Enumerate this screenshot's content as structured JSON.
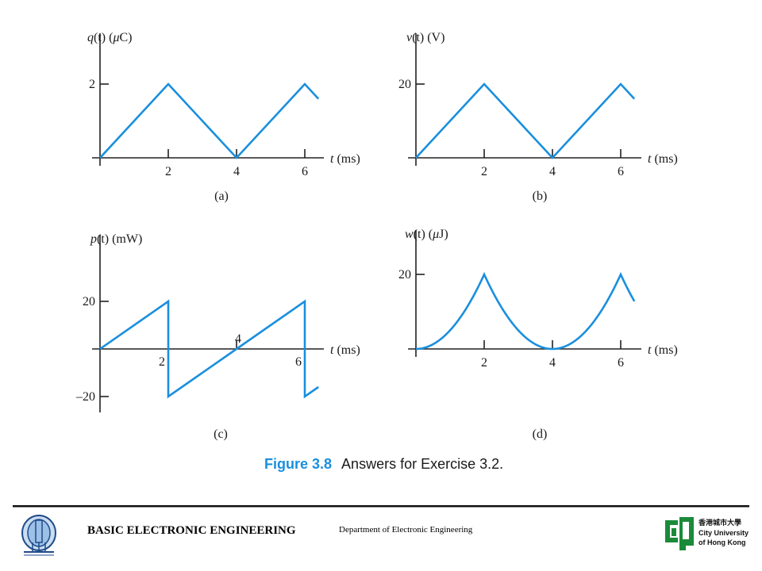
{
  "chart_data": [
    {
      "id": "a",
      "type": "line",
      "label": "(a)",
      "ylabel_main": "q",
      "ylabel_rest": "(t) (",
      "ylabel_unit_prefix": "μ",
      "ylabel_unit": "C)",
      "xlabel_var": "t",
      "xlabel_unit": "(ms)",
      "x_ticks": [
        "2",
        "4",
        "6"
      ],
      "y_ticks": [
        "2"
      ],
      "x": [
        0,
        2,
        4,
        6,
        6.4
      ],
      "y": [
        0,
        2,
        0,
        2,
        1.6
      ],
      "xlim": [
        0,
        6.4
      ],
      "ylim": [
        0,
        2
      ]
    },
    {
      "id": "b",
      "type": "line",
      "label": "(b)",
      "ylabel_main": "v",
      "ylabel_rest": "(t) (V)",
      "ylabel_unit_prefix": "",
      "ylabel_unit": "",
      "xlabel_var": "t",
      "xlabel_unit": "(ms)",
      "x_ticks": [
        "2",
        "4",
        "6"
      ],
      "y_ticks": [
        "20"
      ],
      "x": [
        0,
        2,
        4,
        6,
        6.4
      ],
      "y": [
        0,
        20,
        0,
        20,
        16
      ],
      "xlim": [
        0,
        6.4
      ],
      "ylim": [
        0,
        20
      ]
    },
    {
      "id": "c",
      "type": "line",
      "label": "(c)",
      "ylabel_main": "p",
      "ylabel_rest": "(t) (mW)",
      "ylabel_unit_prefix": "",
      "ylabel_unit": "",
      "xlabel_var": "t",
      "xlabel_unit": "(ms)",
      "x_ticks": [
        "2",
        "4",
        "6"
      ],
      "y_ticks": [
        "20",
        "–20"
      ],
      "x": [
        0,
        2,
        2,
        4,
        6,
        6,
        6.4
      ],
      "y": [
        0,
        20,
        -20,
        0,
        20,
        -20,
        -16
      ],
      "xlim": [
        0,
        6.4
      ],
      "ylim": [
        -20,
        20
      ]
    },
    {
      "id": "d",
      "type": "line",
      "label": "(d)",
      "ylabel_main": "w",
      "ylabel_rest": "(t) (",
      "ylabel_unit_prefix": "μ",
      "ylabel_unit": "J)",
      "xlabel_var": "t",
      "xlabel_unit": "(ms)",
      "x_ticks": [
        "2",
        "4",
        "6"
      ],
      "y_ticks": [
        "20"
      ],
      "curve": "w = 5*q^2 (quadratic segments)",
      "x": [
        0,
        1,
        2,
        3,
        4,
        5,
        6,
        6.2,
        6.4
      ],
      "y": [
        0,
        5,
        20,
        5,
        0,
        5,
        20,
        16.2,
        12.8
      ],
      "xlim": [
        0,
        6.4
      ],
      "ylim": [
        0,
        20
      ]
    }
  ],
  "caption": {
    "number": "Figure 3.8",
    "text": "Answers for Exercise 3.2."
  },
  "footer": {
    "course": "BASIC ELECTRONIC ENGINEERING",
    "department": "Department of Electronic Engineering",
    "university_cn": "香港城市大學",
    "university_en_1": "City University",
    "university_en_2": "of Hong Kong"
  },
  "colors": {
    "curve": "#1a8fde",
    "caption_accent": "#1a8fde",
    "logo_green": "#1b8a3a"
  }
}
